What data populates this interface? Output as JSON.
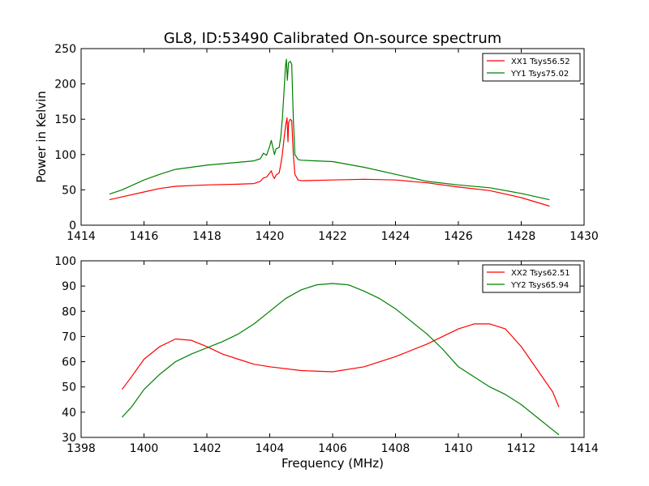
{
  "figure": {
    "title": "GL8, ID:53490 Calibrated On-source spectrum",
    "shared_xlabel": "Frequency (MHz)"
  },
  "colors": {
    "red": "#ff0000",
    "green": "#008000",
    "axis": "#000000"
  },
  "chart_data": [
    {
      "type": "line",
      "ylabel": "Power in Kelvin",
      "xlim": [
        1414,
        1430
      ],
      "ylim": [
        0,
        250
      ],
      "xticks": [
        1414,
        1416,
        1418,
        1420,
        1422,
        1424,
        1426,
        1428,
        1430
      ],
      "yticks": [
        0,
        50,
        100,
        150,
        200,
        250
      ],
      "legend": {
        "position": "top-right"
      },
      "series": [
        {
          "name": "XX1 Tsys56.52",
          "color": "#ff0000",
          "points": [
            [
              1414.9,
              36
            ],
            [
              1415.3,
              40
            ],
            [
              1416,
              47
            ],
            [
              1416.5,
              52
            ],
            [
              1417,
              55
            ],
            [
              1418,
              57
            ],
            [
              1419,
              58
            ],
            [
              1419.5,
              59
            ],
            [
              1419.7,
              62
            ],
            [
              1419.8,
              67
            ],
            [
              1419.9,
              68
            ],
            [
              1420.0,
              74
            ],
            [
              1420.05,
              77
            ],
            [
              1420.1,
              70
            ],
            [
              1420.15,
              66
            ],
            [
              1420.2,
              71
            ],
            [
              1420.3,
              74
            ],
            [
              1420.35,
              86
            ],
            [
              1420.4,
              100
            ],
            [
              1420.45,
              120
            ],
            [
              1420.5,
              140
            ],
            [
              1420.55,
              152
            ],
            [
              1420.58,
              118
            ],
            [
              1420.6,
              145
            ],
            [
              1420.65,
              150
            ],
            [
              1420.7,
              148
            ],
            [
              1420.75,
              100
            ],
            [
              1420.8,
              72
            ],
            [
              1420.9,
              64
            ],
            [
              1421,
              63
            ],
            [
              1422,
              64
            ],
            [
              1423,
              65
            ],
            [
              1424,
              64
            ],
            [
              1425,
              60
            ],
            [
              1426,
              54
            ],
            [
              1427,
              49
            ],
            [
              1428,
              39
            ],
            [
              1428.9,
              27
            ]
          ]
        },
        {
          "name": "YY1 Tsys75.02",
          "color": "#008000",
          "points": [
            [
              1414.9,
              44
            ],
            [
              1415.3,
              50
            ],
            [
              1416,
              64
            ],
            [
              1416.5,
              72
            ],
            [
              1417,
              79
            ],
            [
              1418,
              85
            ],
            [
              1419,
              89
            ],
            [
              1419.5,
              91
            ],
            [
              1419.7,
              94
            ],
            [
              1419.8,
              102
            ],
            [
              1419.9,
              99
            ],
            [
              1420.0,
              112
            ],
            [
              1420.05,
              120
            ],
            [
              1420.1,
              110
            ],
            [
              1420.15,
              100
            ],
            [
              1420.2,
              108
            ],
            [
              1420.3,
              110
            ],
            [
              1420.35,
              125
            ],
            [
              1420.4,
              150
            ],
            [
              1420.45,
              185
            ],
            [
              1420.5,
              225
            ],
            [
              1420.53,
              235
            ],
            [
              1420.56,
              205
            ],
            [
              1420.6,
              230
            ],
            [
              1420.65,
              232
            ],
            [
              1420.7,
              228
            ],
            [
              1420.75,
              150
            ],
            [
              1420.8,
              100
            ],
            [
              1420.9,
              93
            ],
            [
              1421,
              92
            ],
            [
              1422,
              90
            ],
            [
              1423,
              82
            ],
            [
              1424,
              72
            ],
            [
              1425,
              62
            ],
            [
              1426,
              57
            ],
            [
              1427,
              53
            ],
            [
              1428,
              45
            ],
            [
              1428.9,
              36
            ]
          ]
        }
      ]
    },
    {
      "type": "line",
      "xlabel": "Frequency (MHz)",
      "xlim": [
        1398,
        1414
      ],
      "ylim": [
        30,
        100
      ],
      "xticks": [
        1398,
        1400,
        1402,
        1404,
        1406,
        1408,
        1410,
        1412,
        1414
      ],
      "yticks": [
        30,
        40,
        50,
        60,
        70,
        80,
        90,
        100
      ],
      "legend": {
        "position": "top-right"
      },
      "series": [
        {
          "name": "XX2 Tsys62.51",
          "color": "#ff0000",
          "points": [
            [
              1399.3,
              49
            ],
            [
              1399.6,
              54
            ],
            [
              1400,
              61
            ],
            [
              1400.5,
              66
            ],
            [
              1401,
              69
            ],
            [
              1401.5,
              68.5
            ],
            [
              1402,
              66
            ],
            [
              1402.5,
              63
            ],
            [
              1403,
              61
            ],
            [
              1403.5,
              59
            ],
            [
              1404,
              58
            ],
            [
              1405,
              56.5
            ],
            [
              1406,
              56
            ],
            [
              1407,
              58
            ],
            [
              1408,
              62
            ],
            [
              1409,
              67
            ],
            [
              1409.5,
              70
            ],
            [
              1410,
              73
            ],
            [
              1410.5,
              75
            ],
            [
              1411,
              75
            ],
            [
              1411.5,
              73
            ],
            [
              1412,
              66
            ],
            [
              1412.5,
              57
            ],
            [
              1413,
              48
            ],
            [
              1413.2,
              42
            ]
          ]
        },
        {
          "name": "YY2 Tsys65.94",
          "color": "#008000",
          "points": [
            [
              1399.3,
              38
            ],
            [
              1399.6,
              42
            ],
            [
              1400,
              49
            ],
            [
              1400.5,
              55
            ],
            [
              1401,
              60
            ],
            [
              1401.5,
              63
            ],
            [
              1402,
              65.5
            ],
            [
              1402.5,
              68
            ],
            [
              1403,
              71
            ],
            [
              1403.5,
              75
            ],
            [
              1404,
              80
            ],
            [
              1404.5,
              85
            ],
            [
              1405,
              88.5
            ],
            [
              1405.5,
              90.5
            ],
            [
              1406,
              91
            ],
            [
              1406.5,
              90.5
            ],
            [
              1407,
              88
            ],
            [
              1407.5,
              85
            ],
            [
              1408,
              81
            ],
            [
              1408.5,
              76
            ],
            [
              1409,
              71
            ],
            [
              1409.5,
              65
            ],
            [
              1410,
              58
            ],
            [
              1410.5,
              54
            ],
            [
              1411,
              50
            ],
            [
              1411.5,
              47
            ],
            [
              1412,
              43
            ],
            [
              1412.5,
              38
            ],
            [
              1413,
              33
            ],
            [
              1413.2,
              31
            ]
          ]
        }
      ]
    }
  ]
}
